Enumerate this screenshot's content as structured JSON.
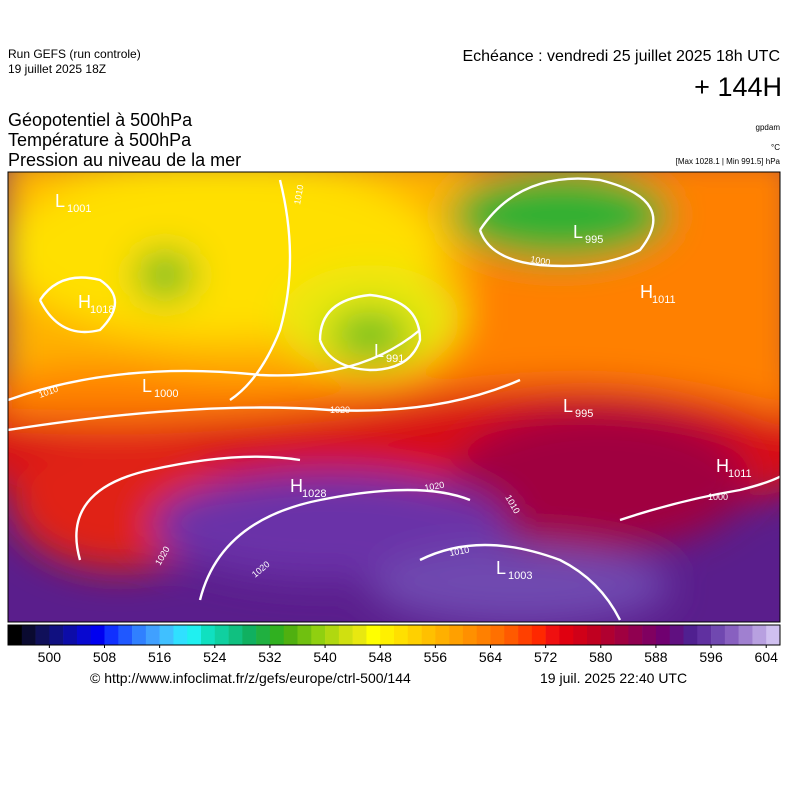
{
  "header": {
    "run": "Run GEFS (run controle)",
    "run_date": "19 juillet 2025 18Z",
    "echeance": "Echéance : vendredi 25 juillet 2025 18h UTC",
    "lead": "+ 144H"
  },
  "fields": [
    "Géopotentiel à 500hPa",
    "Température à 500hPa",
    "Pression au niveau de la mer"
  ],
  "units": [
    "gpdam",
    "°C",
    "[Max 1028.1 | Min 991.5] hPa"
  ],
  "centers": [
    {
      "type": "L",
      "value": "1001"
    },
    {
      "type": "H",
      "value": "1018"
    },
    {
      "type": "L",
      "value": "1000"
    },
    {
      "type": "L",
      "value": "991"
    },
    {
      "type": "L",
      "value": "995"
    },
    {
      "type": "H",
      "value": "1011"
    },
    {
      "type": "L",
      "value": "995"
    },
    {
      "type": "H",
      "value": "1028"
    },
    {
      "type": "L",
      "value": "1003"
    },
    {
      "type": "H",
      "value": "1011"
    }
  ],
  "contour_labels": [
    "1010",
    "1010",
    "1020",
    "1020",
    "1010",
    "1020",
    "1020",
    "1000",
    "1000",
    "1010"
  ],
  "colorbar": {
    "xlim": [
      494,
      606
    ],
    "ticks": [
      500,
      508,
      516,
      524,
      532,
      540,
      548,
      556,
      564,
      572,
      580,
      588,
      596,
      604
    ],
    "colors": [
      "#000000",
      "#0a0a30",
      "#10105a",
      "#101080",
      "#0c0ca8",
      "#0808d0",
      "#0000f0",
      "#1030ff",
      "#2058ff",
      "#3080ff",
      "#40a0ff",
      "#40c0ff",
      "#30e0ff",
      "#20f0f0",
      "#10e0c0",
      "#10d0a0",
      "#10c080",
      "#10b060",
      "#20b040",
      "#30b020",
      "#50b010",
      "#70c010",
      "#90d010",
      "#b0d810",
      "#d0e010",
      "#e8e810",
      "#ffff00",
      "#fff000",
      "#ffe000",
      "#ffd000",
      "#ffc000",
      "#ffb000",
      "#ffa000",
      "#ff9000",
      "#ff8000",
      "#ff7000",
      "#ff5a00",
      "#ff4000",
      "#ff2800",
      "#f01010",
      "#e00010",
      "#d00018",
      "#c00020",
      "#b00030",
      "#a00040",
      "#900050",
      "#800060",
      "#700070",
      "#601080",
      "#502090",
      "#6030a0",
      "#7048b0",
      "#8860c0",
      "#a080d0",
      "#b8a0e0",
      "#d0c0f0"
    ]
  },
  "footer": {
    "url": "© http://www.infoclimat.fr/z/gefs/europe/ctrl-500/144",
    "time": "19 juil. 2025 22:40 UTC"
  }
}
